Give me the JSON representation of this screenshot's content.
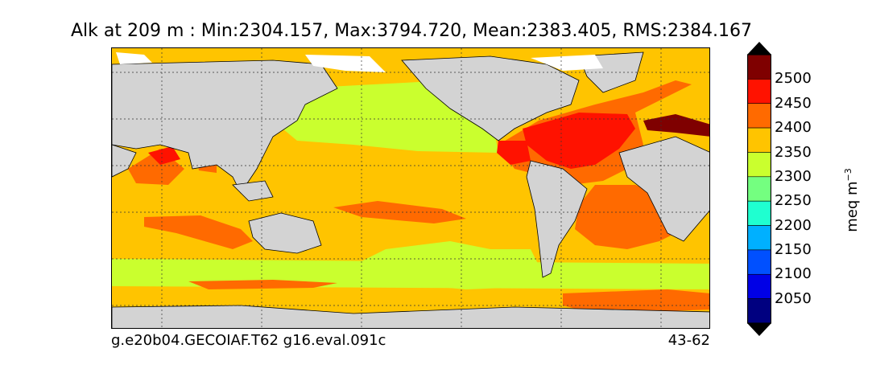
{
  "title": "Alk at 209 m : Min:2304.157, Max:3794.720, Mean:2383.405, RMS:2384.167",
  "footer": {
    "left": "g.e20b04.GECOIAF.T62 g16.eval.091c",
    "right": "43-62"
  },
  "colorbar": {
    "units_base": "meq m",
    "units_exp": "−3",
    "levels": [
      "2500",
      "2450",
      "2400",
      "2350",
      "2300",
      "2250",
      "2200",
      "2150",
      "2100",
      "2050"
    ],
    "colors": {
      "above": "#7f0000",
      "2450_2500": "#7f0000",
      "2400_2450": "#ff1200",
      "2350_2400": "#ff6a00",
      "2300_2350": "#ffc400",
      "2250_2300": "#caff2e",
      "2200_2250": "#74ff80",
      "2150_2200": "#1fffd0",
      "2100_2150": "#00b0ff",
      "2050_2100": "#0050ff",
      "2000_2050": "#0000e6",
      "below": "#000080"
    }
  },
  "map": {
    "land_color": "#d3d3d3",
    "ice_color": "#ffffff",
    "grid": "dotted"
  }
}
